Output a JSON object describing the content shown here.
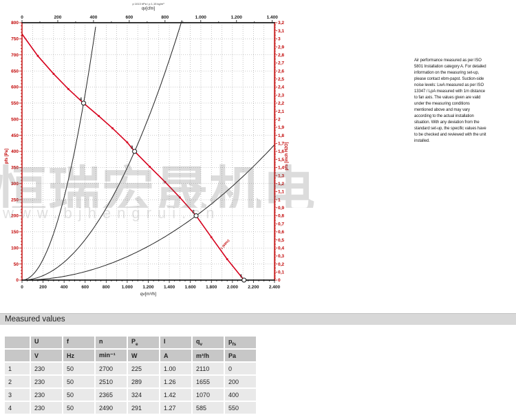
{
  "watermark": {
    "cn_text": "恒瑞宏晟机电",
    "url_text": "www.bjhengrui.cn"
  },
  "note": {
    "text": "Air performance measured as per ISO 5801 Installation category A. For detailed information on the measuring set-up, please contact ebm-papst. Suction-side noise levels: LwA measured as per ISO 13347 / LpA measured with 1m distance to fan axis. The values given are valid under the measuring conditions mentioned above and may vary according to the actual installation situation. With any deviation from the standard set-up, the specific values have to be checked and reviewed with the unit installed."
  },
  "chart_data": {
    "type": "line",
    "microtitle": "p 1013 hPa / ρ 1,15 kg/m³",
    "colors": {
      "curve_red": "#d6001c",
      "axis_red": "#c00000",
      "black": "#1a1a1a",
      "grid": "#9a9a9a"
    },
    "axes": {
      "bottom": {
        "label": "qv[m³/h]",
        "min": 0,
        "max": 2400,
        "step": 200,
        "ticks": [
          "0",
          "200",
          "400",
          "600",
          "800",
          "1.000",
          "1.200",
          "1.400",
          "1.600",
          "1.800",
          "2.000",
          "2.200",
          "2.400"
        ]
      },
      "top": {
        "label": "qv[cfm]",
        "min": 0,
        "max": 1400,
        "step": 200,
        "ticks": [
          "0",
          "200",
          "400",
          "600",
          "800",
          "1.000",
          "1.200",
          "1.400"
        ]
      },
      "left": {
        "label": "pfs [Pa]",
        "min": 0,
        "max": 800,
        "step": 50,
        "ticks": [
          "800",
          "750",
          "700",
          "650",
          "600",
          "550",
          "500",
          "450",
          "400",
          "350",
          "300",
          "250",
          "200",
          "150",
          "100",
          "50",
          "0"
        ]
      },
      "right": {
        "label": "pfs [inch H2O]",
        "min": 0,
        "max": 3.2,
        "step": 0.1,
        "ticks": [
          "3,2",
          "3,1",
          "3",
          "2,9",
          "2,8",
          "2,7",
          "2,6",
          "2,5",
          "2,4",
          "2,3",
          "2,2",
          "2,1",
          "2",
          "1,9",
          "1,8",
          "1,7",
          "1,6",
          "1,5",
          "1,4",
          "1,3",
          "1,2",
          "1,1",
          "1",
          "0,9",
          "0,8",
          "0,7",
          "0,6",
          "0,5",
          "0,4",
          "0,3",
          "0,2",
          "0,1",
          "0"
        ]
      }
    },
    "fan_curve": {
      "name": "air performance curve",
      "points": [
        [
          0,
          765
        ],
        [
          150,
          697
        ],
        [
          300,
          641
        ],
        [
          440,
          594
        ],
        [
          585,
          550
        ],
        [
          730,
          510
        ],
        [
          860,
          472
        ],
        [
          1000,
          428
        ],
        [
          1070,
          400
        ],
        [
          1215,
          352
        ],
        [
          1360,
          305
        ],
        [
          1500,
          257
        ],
        [
          1655,
          200
        ],
        [
          1800,
          133
        ],
        [
          1950,
          65
        ],
        [
          2110,
          0
        ]
      ]
    },
    "operating_points": [
      {
        "id": "1",
        "qv": 2110,
        "pfs": 0
      },
      {
        "id": "2",
        "qv": 1655,
        "pfs": 200
      },
      {
        "id": "3",
        "qv": 1070,
        "pfs": 400
      },
      {
        "id": "4",
        "qv": 585,
        "pfs": 550
      }
    ],
    "system_curves": [
      {
        "through_qv": 585,
        "through_pfs": 550
      },
      {
        "through_qv": 1070,
        "through_pfs": 400
      },
      {
        "through_qv": 1655,
        "through_pfs": 200
      }
    ],
    "curve_end_label": "1 (50Hz)"
  },
  "table": {
    "title": "Measured values",
    "headers": [
      {
        "t": "",
        "sub": ""
      },
      {
        "t": "U",
        "sub": ""
      },
      {
        "t": "f",
        "sub": ""
      },
      {
        "t": "n",
        "sub": ""
      },
      {
        "t": "P",
        "sub": "e"
      },
      {
        "t": "I",
        "sub": ""
      },
      {
        "t": "q",
        "sub": "v"
      },
      {
        "t": "p",
        "sub": "fs"
      }
    ],
    "units": [
      "",
      "V",
      "Hz",
      "min⁻¹",
      "W",
      "A",
      "m³/h",
      "Pa"
    ],
    "rows": [
      [
        "1",
        "230",
        "50",
        "2700",
        "225",
        "1.00",
        "2110",
        "0"
      ],
      [
        "2",
        "230",
        "50",
        "2510",
        "289",
        "1.26",
        "1655",
        "200"
      ],
      [
        "3",
        "230",
        "50",
        "2365",
        "324",
        "1.42",
        "1070",
        "400"
      ],
      [
        "4",
        "230",
        "50",
        "2490",
        "291",
        "1.27",
        "585",
        "550"
      ]
    ]
  }
}
